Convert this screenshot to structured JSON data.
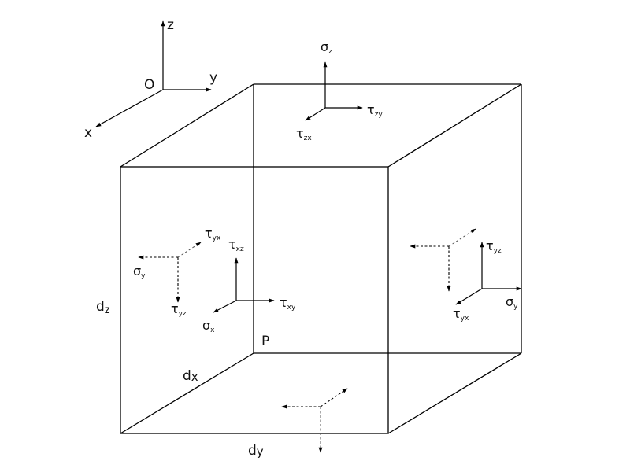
{
  "axes": {
    "origin": "O",
    "x": "x",
    "y": "y",
    "z": "z"
  },
  "dimensions": {
    "dz": {
      "base": "d",
      "sub": "z"
    },
    "dx": {
      "base": "d",
      "sub": "x"
    },
    "dy": {
      "base": "d",
      "sub": "y"
    }
  },
  "point": "P",
  "top_face": {
    "sigma_z": {
      "base": "σ",
      "sub": "z"
    },
    "tau_zy": {
      "base": "τ",
      "sub": "zy"
    },
    "tau_zx": {
      "base": "τ",
      "sub": "zx"
    }
  },
  "front_face": {
    "sigma_x": {
      "base": "σ",
      "sub": "x"
    },
    "tau_xy": {
      "base": "τ",
      "sub": "xy"
    },
    "tau_xz": {
      "base": "τ",
      "sub": "xz"
    }
  },
  "back_face": {
    "sigma_y": {
      "base": "σ",
      "sub": "y"
    },
    "tau_yx": {
      "base": "τ",
      "sub": "yx"
    },
    "tau_yz": {
      "base": "τ",
      "sub": "yz"
    }
  },
  "right_face": {
    "sigma_y": {
      "base": "σ",
      "sub": "y"
    },
    "tau_yz": {
      "base": "τ",
      "sub": "yz"
    },
    "tau_yx": {
      "base": "τ",
      "sub": "yx"
    }
  }
}
